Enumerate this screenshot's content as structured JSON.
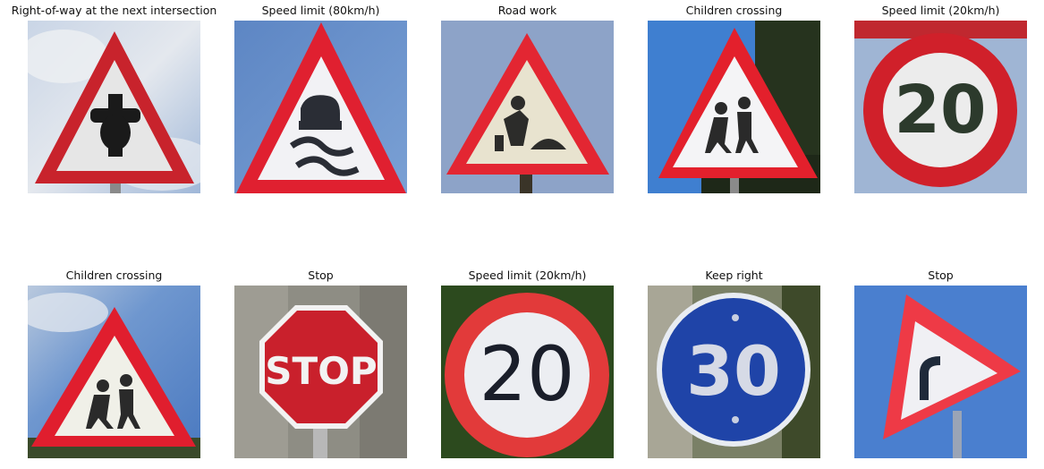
{
  "grid": {
    "cells": [
      {
        "title": "Right-of-way at the next intersection",
        "sign": "triangle-intersection-icon"
      },
      {
        "title": "Speed limit (80km/h)",
        "sign": "triangle-slippery-road-icon"
      },
      {
        "title": "Road work",
        "sign": "triangle-road-work-icon"
      },
      {
        "title": "Children crossing",
        "sign": "triangle-children-icon"
      },
      {
        "title": "Speed limit (20km/h)",
        "sign": "round-speed-20-icon",
        "number": "20"
      },
      {
        "title": "Children crossing",
        "sign": "triangle-children-icon"
      },
      {
        "title": "Stop",
        "sign": "octagon-stop-icon",
        "label": "STOP"
      },
      {
        "title": "Speed limit (20km/h)",
        "sign": "round-speed-20-icon",
        "number": "20"
      },
      {
        "title": "Keep right",
        "sign": "blue-round-30-icon",
        "number": "30"
      },
      {
        "title": "Stop",
        "sign": "triangle-curve-right-icon"
      }
    ]
  }
}
